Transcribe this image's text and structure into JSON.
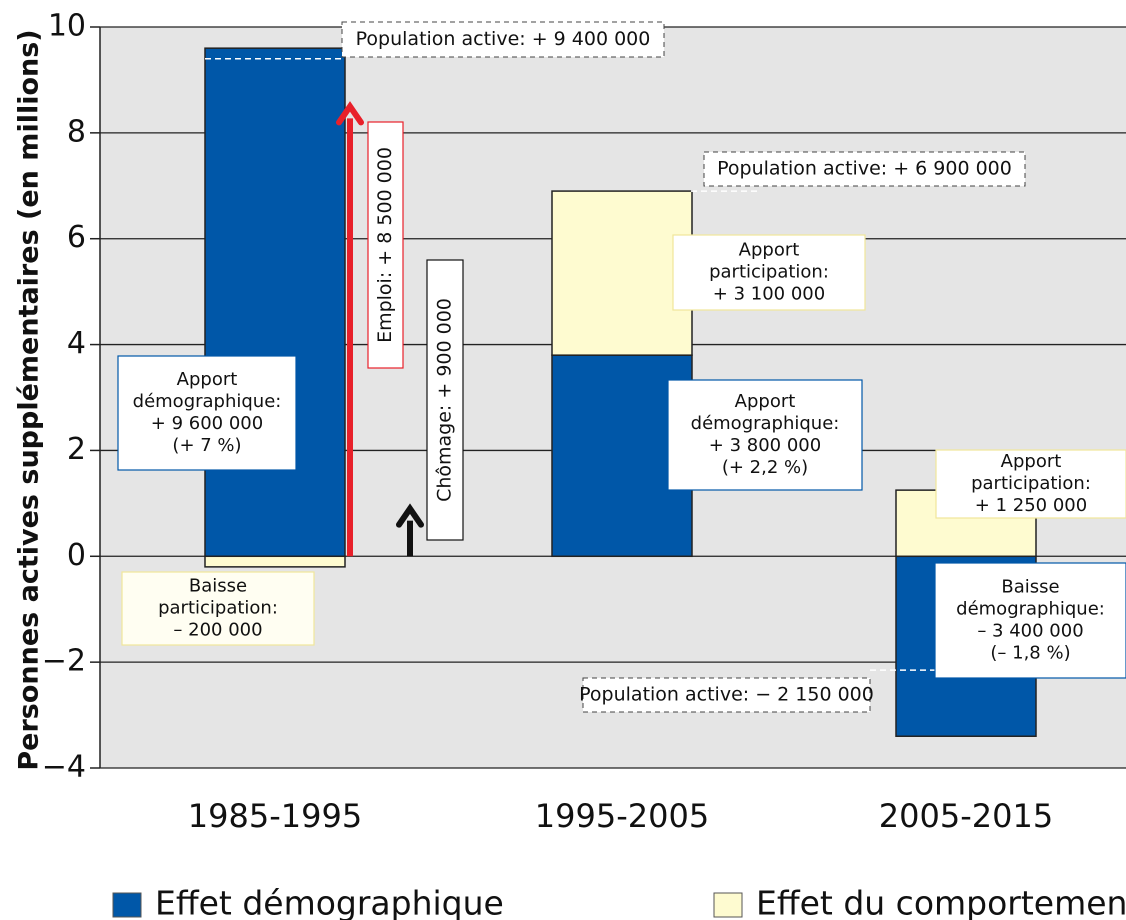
{
  "chart_data": {
    "type": "stacked_bar",
    "ylabel": "Personnes actives supplémentaires (en millions)",
    "categories": [
      "1985-1995",
      "1995-2005",
      "2005-2015"
    ],
    "series": [
      {
        "name": "Effet démographique",
        "color": "#0057a8",
        "values": [
          9.6,
          3.8,
          -3.4
        ]
      },
      {
        "name": "Effet du comportement",
        "color": "#fefbd0",
        "values": [
          -0.2,
          3.1,
          1.25
        ]
      }
    ],
    "ylim": [
      -4,
      10
    ],
    "yticks": [
      {
        "value": -4,
        "label": "−4"
      },
      {
        "value": -2,
        "label": "−2"
      },
      0,
      2,
      4,
      6,
      8,
      10
    ],
    "grid": true,
    "legend": "bottom",
    "totals": [
      {
        "label": "Population active: + 9 400 000",
        "value": 9.4
      },
      {
        "label": "Population active: + 6 900 000",
        "value": 6.9
      },
      {
        "label": "Population active: − 2 150 000",
        "value": -2.15
      }
    ],
    "arrows": [
      {
        "label": "Emploi: + 8 500 000",
        "value": 8.5,
        "color": "#e8202a"
      },
      {
        "label": "Chômage: + 900 000",
        "value": 0.9,
        "color": "#111111"
      }
    ],
    "annotations": [
      {
        "lines": [
          "Apport",
          "démographique:",
          "+ 9 600 000",
          "(+ 7 %)"
        ]
      },
      {
        "lines": [
          "Baisse",
          "participation:",
          "– 200 000"
        ]
      },
      {
        "lines": [
          "Apport",
          "participation:",
          "+ 3 100 000"
        ]
      },
      {
        "lines": [
          "Apport",
          "démographique:",
          "+ 3 800 000",
          "(+ 2,2 %)"
        ]
      },
      {
        "lines": [
          "Apport",
          "participation:",
          "+ 1 250 000"
        ]
      },
      {
        "lines": [
          "Baisse",
          "démographique:",
          "– 3 400 000",
          "(– 1,8 %)"
        ]
      }
    ]
  }
}
